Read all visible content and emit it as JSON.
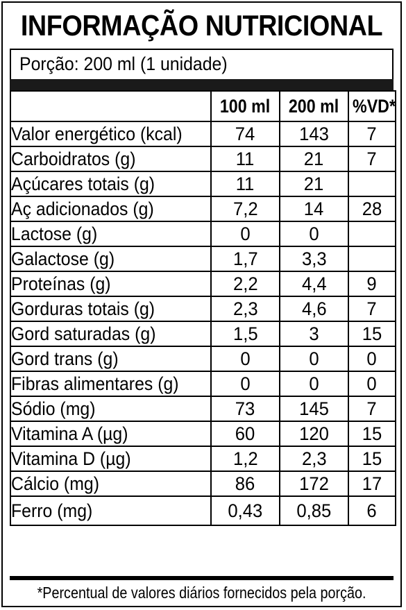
{
  "title": "INFORMAÇÃO NUTRICIONAL",
  "portion": "Porção: 200 ml (1 unidade)",
  "columns": {
    "per100": "100 ml",
    "per200": "200 ml",
    "vd": "%VD*"
  },
  "rows": [
    {
      "name": "Valor energético (kcal)",
      "v100": "74",
      "v200": "143",
      "vd": "7"
    },
    {
      "name": "Carboidratos (g)",
      "v100": "11",
      "v200": "21",
      "vd": "7"
    },
    {
      "name": "Açúcares totais (g)",
      "v100": "11",
      "v200": "21",
      "vd": ""
    },
    {
      "name": "Aç adicionados (g)",
      "v100": "7,2",
      "v200": "14",
      "vd": "28"
    },
    {
      "name": "Lactose (g)",
      "v100": "0",
      "v200": "0",
      "vd": ""
    },
    {
      "name": "Galactose (g)",
      "v100": "1,7",
      "v200": "3,3",
      "vd": ""
    },
    {
      "name": "Proteínas (g)",
      "v100": "2,2",
      "v200": "4,4",
      "vd": "9"
    },
    {
      "name": "Gorduras totais (g)",
      "v100": "2,3",
      "v200": "4,6",
      "vd": "7"
    },
    {
      "name": "Gord saturadas (g)",
      "v100": "1,5",
      "v200": "3",
      "vd": "15"
    },
    {
      "name": "Gord trans (g)",
      "v100": "0",
      "v200": "0",
      "vd": "0"
    },
    {
      "name": "Fibras alimentares (g)",
      "v100": "0",
      "v200": "0",
      "vd": "0"
    },
    {
      "name": "Sódio (mg)",
      "v100": "73",
      "v200": "145",
      "vd": "7"
    },
    {
      "name": "Vitamina A (µg)",
      "v100": "60",
      "v200": "120",
      "vd": "15"
    },
    {
      "name": "Vitamina D (µg)",
      "v100": "1,2",
      "v200": "2,3",
      "vd": "15"
    },
    {
      "name": "Cálcio (mg)",
      "v100": "86",
      "v200": "172",
      "vd": "17"
    },
    {
      "name": "Ferro (mg)",
      "v100": "0,43",
      "v200": "0,85",
      "vd": "6"
    }
  ],
  "footnote": "*Percentual de valores diários fornecidos pela porção."
}
